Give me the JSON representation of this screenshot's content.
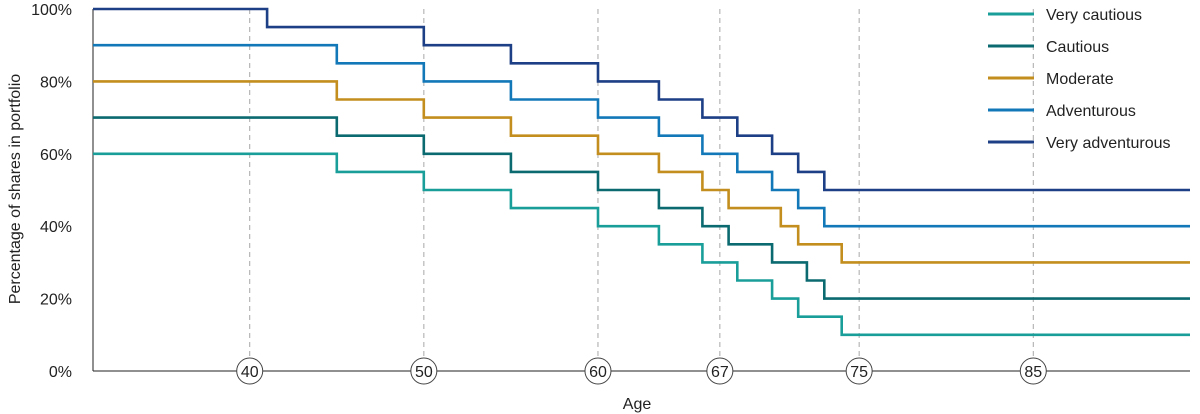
{
  "chart_data": {
    "type": "line",
    "title": "",
    "xlabel": "Age",
    "ylabel": "Percentage of shares in portfolio",
    "xlim": [
      31,
      94
    ],
    "ylim": [
      0,
      100
    ],
    "y_ticks": [
      0,
      20,
      40,
      60,
      80,
      100
    ],
    "y_tick_labels": [
      "0%",
      "20%",
      "40%",
      "60%",
      "80%",
      "100%"
    ],
    "x_ticks": [
      40,
      50,
      60,
      67,
      75,
      85
    ],
    "x_tick_labels": [
      "40",
      "50",
      "60",
      "67",
      "75",
      "85"
    ],
    "grid": "vertical dashed at x ticks",
    "legend_position": "top-right",
    "series": [
      {
        "name": "Very cautious",
        "color": "#1a9e9a",
        "points": [
          [
            31,
            60
          ],
          [
            45,
            60
          ],
          [
            45,
            55
          ],
          [
            50,
            55
          ],
          [
            50,
            50
          ],
          [
            55,
            50
          ],
          [
            55,
            45
          ],
          [
            60,
            45
          ],
          [
            60,
            40
          ],
          [
            63.5,
            40
          ],
          [
            63.5,
            35
          ],
          [
            66,
            35
          ],
          [
            66,
            30
          ],
          [
            68,
            30
          ],
          [
            68,
            25
          ],
          [
            70,
            25
          ],
          [
            70,
            20
          ],
          [
            71.5,
            20
          ],
          [
            71.5,
            15
          ],
          [
            74,
            15
          ],
          [
            74,
            10
          ],
          [
            94,
            10
          ]
        ]
      },
      {
        "name": "Cautious",
        "color": "#0b6a70",
        "points": [
          [
            31,
            70
          ],
          [
            45,
            70
          ],
          [
            45,
            65
          ],
          [
            50,
            65
          ],
          [
            50,
            60
          ],
          [
            55,
            60
          ],
          [
            55,
            55
          ],
          [
            60,
            55
          ],
          [
            60,
            50
          ],
          [
            63.5,
            50
          ],
          [
            63.5,
            45
          ],
          [
            66,
            45
          ],
          [
            66,
            40
          ],
          [
            67.5,
            40
          ],
          [
            67.5,
            35
          ],
          [
            70,
            35
          ],
          [
            70,
            30
          ],
          [
            72,
            30
          ],
          [
            72,
            25
          ],
          [
            73,
            25
          ],
          [
            73,
            20
          ],
          [
            94,
            20
          ]
        ]
      },
      {
        "name": "Moderate",
        "color": "#c38e1e",
        "points": [
          [
            31,
            80
          ],
          [
            45,
            80
          ],
          [
            45,
            75
          ],
          [
            50,
            75
          ],
          [
            50,
            70
          ],
          [
            55,
            70
          ],
          [
            55,
            65
          ],
          [
            60,
            65
          ],
          [
            60,
            60
          ],
          [
            63.5,
            60
          ],
          [
            63.5,
            55
          ],
          [
            66,
            55
          ],
          [
            66,
            50
          ],
          [
            67.5,
            50
          ],
          [
            67.5,
            45
          ],
          [
            70.5,
            45
          ],
          [
            70.5,
            40
          ],
          [
            71.5,
            40
          ],
          [
            71.5,
            35
          ],
          [
            74,
            35
          ],
          [
            74,
            30
          ],
          [
            94,
            30
          ]
        ]
      },
      {
        "name": "Adventurous",
        "color": "#1378b8",
        "points": [
          [
            31,
            90
          ],
          [
            45,
            90
          ],
          [
            45,
            85
          ],
          [
            50,
            85
          ],
          [
            50,
            80
          ],
          [
            55,
            80
          ],
          [
            55,
            75
          ],
          [
            60,
            75
          ],
          [
            60,
            70
          ],
          [
            63.5,
            70
          ],
          [
            63.5,
            65
          ],
          [
            66,
            65
          ],
          [
            66,
            60
          ],
          [
            68,
            60
          ],
          [
            68,
            55
          ],
          [
            70,
            55
          ],
          [
            70,
            50
          ],
          [
            71.5,
            50
          ],
          [
            71.5,
            45
          ],
          [
            73,
            45
          ],
          [
            73,
            40
          ],
          [
            94,
            40
          ]
        ]
      },
      {
        "name": "Very adventurous",
        "color": "#1c3f85",
        "points": [
          [
            31,
            100
          ],
          [
            41,
            100
          ],
          [
            41,
            95
          ],
          [
            50,
            95
          ],
          [
            50,
            90
          ],
          [
            55,
            90
          ],
          [
            55,
            85
          ],
          [
            60,
            85
          ],
          [
            60,
            80
          ],
          [
            63.5,
            80
          ],
          [
            63.5,
            75
          ],
          [
            66,
            75
          ],
          [
            66,
            70
          ],
          [
            68,
            70
          ],
          [
            68,
            65
          ],
          [
            70,
            65
          ],
          [
            70,
            60
          ],
          [
            71.5,
            60
          ],
          [
            71.5,
            55
          ],
          [
            73,
            55
          ],
          [
            73,
            50
          ],
          [
            94,
            50
          ]
        ]
      }
    ]
  }
}
